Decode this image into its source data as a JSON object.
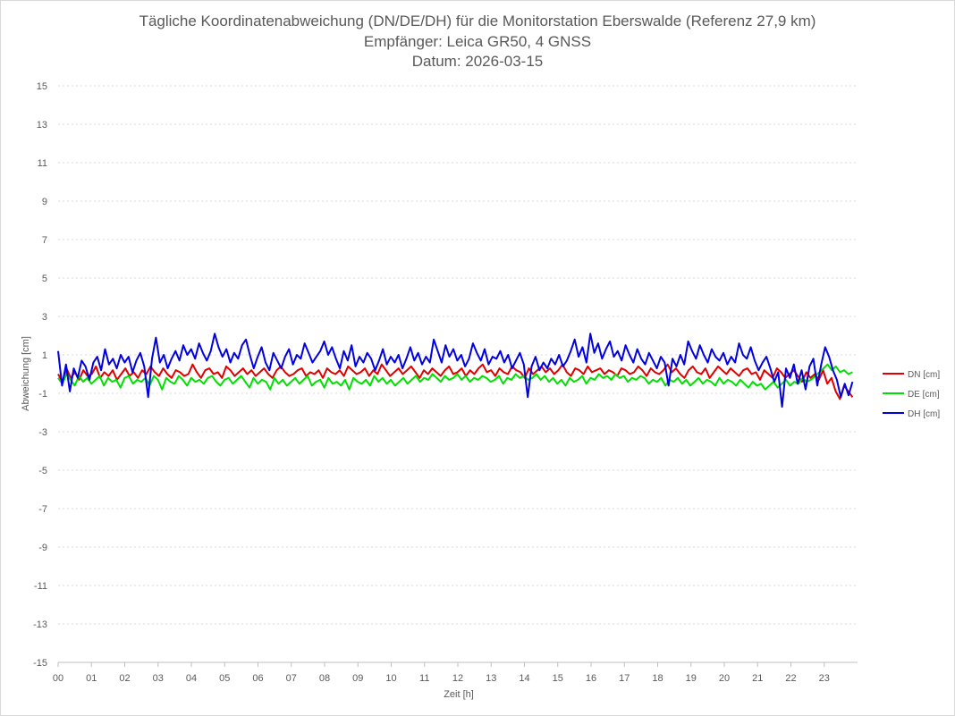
{
  "chart_data": {
    "type": "line",
    "title_lines": [
      "Tägliche Koordinatenabweichung (DN/DE/DH) für die Monitorstation Eberswalde (Referenz 27,9 km)",
      "Empfänger: Leica GR50, 4 GNSS",
      "Datum: 2026-03-15"
    ],
    "xlabel": "Zeit [h]",
    "ylabel": "Abweichung [cm]",
    "xlim": [
      0,
      24
    ],
    "ylim": [
      -15,
      15
    ],
    "x_ticks": [
      "00",
      "01",
      "02",
      "03",
      "04",
      "05",
      "06",
      "07",
      "08",
      "09",
      "10",
      "11",
      "12",
      "13",
      "14",
      "15",
      "16",
      "17",
      "18",
      "19",
      "20",
      "21",
      "22",
      "23"
    ],
    "y_ticks": [
      "15",
      "13",
      "11",
      "9",
      "7",
      "5",
      "3",
      "1",
      "-1",
      "-3",
      "-5",
      "-7",
      "-9",
      "-11",
      "-13",
      "-15"
    ],
    "grid": true,
    "legend_position": "right",
    "series": [
      {
        "name": "DN [cm]",
        "color": "#e00000",
        "hourly_mean": [
          -0.1,
          0.0,
          0.1,
          0.0,
          0.2,
          0.2,
          0.0,
          0.1,
          0.2,
          0.1,
          0.2,
          0.0,
          0.2,
          0.2,
          0.1,
          0.3,
          0.2,
          0.0,
          0.2,
          0.2,
          0.1,
          0.0,
          -0.2,
          0.1
        ],
        "values": [
          0.0,
          -0.4,
          0.3,
          -0.2,
          0.1,
          -0.3,
          0.2,
          -0.1,
          0.0,
          0.4,
          -0.2,
          0.1,
          -0.1,
          0.2,
          -0.3,
          0.0,
          0.3,
          -0.1,
          0.1,
          -0.2,
          0.2,
          0.0,
          0.4,
          0.1,
          -0.1,
          0.3,
          0.0,
          -0.2,
          0.2,
          0.1,
          -0.1,
          0.0,
          0.5,
          0.1,
          -0.2,
          0.2,
          0.3,
          0.0,
          0.1,
          -0.2,
          0.4,
          0.2,
          -0.1,
          0.1,
          0.3,
          0.0,
          0.2,
          -0.1,
          0.1,
          0.3,
          0.0,
          -0.2,
          0.2,
          0.4,
          0.1,
          -0.1,
          0.0,
          0.2,
          0.3,
          -0.1,
          0.1,
          0.0,
          0.2,
          -0.2,
          0.3,
          0.1,
          0.0,
          0.2,
          -0.1,
          0.4,
          0.2,
          0.0,
          0.1,
          0.3,
          -0.1,
          0.2,
          0.0,
          0.5,
          0.2,
          -0.1,
          0.1,
          0.3,
          0.0,
          0.2,
          0.4,
          0.1,
          -0.2,
          0.2,
          0.0,
          0.3,
          0.1,
          -0.1,
          0.2,
          0.4,
          0.0,
          0.1,
          0.3,
          -0.1,
          0.2,
          0.0,
          0.3,
          0.5,
          0.1,
          0.2,
          -0.1,
          0.3,
          0.1,
          0.0,
          0.4,
          0.2,
          0.1,
          -0.2,
          0.3,
          0.0,
          0.2,
          0.4,
          0.1,
          0.3,
          0.0,
          0.2,
          0.5,
          0.1,
          -0.1,
          0.3,
          0.2,
          0.0,
          0.4,
          0.1,
          0.2,
          0.3,
          0.0,
          0.2,
          0.1,
          -0.1,
          0.3,
          0.2,
          0.0,
          0.1,
          0.4,
          0.2,
          -0.1,
          0.3,
          0.1,
          0.0,
          0.2,
          0.5,
          0.1,
          0.3,
          0.0,
          -0.2,
          0.2,
          0.4,
          0.1,
          0.0,
          0.3,
          -0.2,
          0.1,
          0.4,
          0.2,
          0.0,
          0.3,
          0.1,
          -0.1,
          0.2,
          0.3,
          0.0,
          0.1,
          -0.3,
          0.2,
          0.0,
          -0.2,
          0.3,
          0.1,
          -0.2,
          0.0,
          0.2,
          -0.1,
          -0.4,
          0.1,
          -0.2,
          0.0,
          -0.3,
          0.2,
          -0.5,
          -0.2,
          -0.9,
          -1.3,
          -0.6,
          -0.9,
          -1.2
        ]
      },
      {
        "name": "DE [cm]",
        "color": "#00e000",
        "hourly_mean": [
          -0.2,
          -0.3,
          -0.3,
          -0.2,
          -0.4,
          -0.3,
          -0.3,
          -0.5,
          -0.3,
          -0.4,
          -0.5,
          -0.2,
          -0.2,
          -0.3,
          -0.1,
          -0.4,
          -0.1,
          -0.3,
          -0.4,
          -0.3,
          -0.4,
          -0.6,
          -0.4,
          0.1
        ],
        "values": [
          -0.2,
          -0.5,
          0.0,
          -0.3,
          -0.6,
          -0.1,
          -0.4,
          -0.2,
          -0.5,
          -0.3,
          -0.1,
          -0.6,
          -0.2,
          -0.4,
          -0.3,
          -0.7,
          -0.2,
          -0.1,
          -0.5,
          -0.3,
          -0.4,
          -0.2,
          -0.6,
          -0.1,
          -0.3,
          -0.8,
          -0.2,
          -0.4,
          -0.5,
          -0.1,
          -0.3,
          -0.6,
          -0.2,
          -0.4,
          -0.3,
          -0.5,
          -0.2,
          -0.1,
          -0.4,
          -0.6,
          -0.3,
          -0.2,
          -0.5,
          -0.3,
          -0.1,
          -0.4,
          -0.7,
          -0.2,
          -0.5,
          -0.3,
          -0.4,
          -0.8,
          -0.2,
          -0.5,
          -0.3,
          -0.6,
          -0.4,
          -0.2,
          -0.5,
          -0.3,
          -0.1,
          -0.6,
          -0.4,
          -0.3,
          -0.7,
          -0.2,
          -0.5,
          -0.4,
          -0.6,
          -0.3,
          -0.8,
          -0.2,
          -0.4,
          -0.5,
          -0.3,
          -0.6,
          -0.1,
          -0.4,
          -0.2,
          -0.5,
          -0.3,
          -0.6,
          -0.4,
          -0.2,
          -0.5,
          -0.3,
          -0.1,
          -0.4,
          -0.2,
          -0.3,
          0.0,
          -0.2,
          -0.4,
          -0.1,
          -0.3,
          -0.2,
          0.0,
          -0.3,
          -0.1,
          -0.4,
          -0.2,
          -0.3,
          -0.1,
          -0.2,
          -0.4,
          -0.3,
          -0.1,
          -0.5,
          -0.2,
          -0.3,
          0.0,
          -0.2,
          -0.1,
          -0.3,
          -0.2,
          0.0,
          -0.3,
          -0.1,
          -0.4,
          -0.2,
          -0.5,
          -0.3,
          -0.6,
          -0.2,
          -0.4,
          -0.3,
          -0.1,
          -0.5,
          -0.2,
          -0.3,
          0.0,
          -0.2,
          -0.1,
          -0.3,
          0.0,
          -0.2,
          -0.1,
          -0.4,
          -0.2,
          -0.3,
          -0.1,
          -0.2,
          -0.5,
          -0.3,
          -0.4,
          -0.2,
          -0.6,
          -0.3,
          -0.4,
          -0.2,
          -0.5,
          -0.3,
          -0.6,
          -0.4,
          -0.2,
          -0.5,
          -0.3,
          -0.4,
          -0.6,
          -0.2,
          -0.5,
          -0.3,
          -0.4,
          -0.6,
          -0.3,
          -0.5,
          -0.7,
          -0.4,
          -0.6,
          -0.5,
          -0.8,
          -0.6,
          -0.4,
          -0.7,
          -0.5,
          -0.3,
          -0.6,
          -0.4,
          -0.5,
          -0.2,
          -0.4,
          -0.3,
          -0.1,
          0.1,
          0.3,
          0.5,
          0.2,
          0.4,
          0.1,
          0.2,
          0.0,
          0.1
        ]
      },
      {
        "name": "DH [cm]",
        "color": "#0000e0",
        "hourly_mean": [
          0.2,
          0.6,
          0.5,
          0.6,
          1.1,
          1.2,
          0.8,
          0.6,
          0.9,
          0.7,
          0.6,
          0.9,
          0.7,
          0.8,
          0.4,
          1.1,
          0.9,
          0.6,
          0.5,
          0.9,
          0.8,
          0.5,
          0.2,
          0.3
        ],
        "values": [
          1.2,
          -0.6,
          0.5,
          -0.9,
          0.3,
          -0.2,
          0.7,
          0.4,
          -0.3,
          0.6,
          0.9,
          0.2,
          1.3,
          0.5,
          0.8,
          0.3,
          1.0,
          0.6,
          0.9,
          0.1,
          0.7,
          1.1,
          0.4,
          -1.2,
          0.8,
          1.9,
          0.6,
          1.0,
          0.3,
          0.8,
          1.2,
          0.7,
          1.5,
          1.0,
          1.3,
          0.8,
          1.6,
          1.1,
          0.7,
          1.2,
          2.1,
          1.4,
          0.9,
          1.3,
          0.6,
          1.1,
          0.8,
          1.5,
          1.8,
          1.0,
          0.3,
          0.9,
          1.4,
          0.6,
          0.2,
          1.1,
          0.7,
          0.3,
          0.9,
          1.3,
          0.5,
          1.0,
          0.8,
          1.6,
          1.1,
          0.6,
          0.9,
          1.2,
          1.7,
          1.0,
          1.4,
          0.8,
          0.3,
          1.2,
          0.7,
          1.5,
          0.4,
          0.9,
          0.6,
          1.1,
          0.8,
          0.2,
          0.7,
          1.3,
          0.5,
          0.9,
          0.6,
          1.0,
          0.3,
          0.8,
          1.4,
          0.7,
          1.1,
          0.5,
          0.9,
          0.6,
          1.8,
          1.2,
          0.6,
          1.5,
          0.9,
          1.3,
          0.7,
          1.0,
          0.4,
          0.8,
          1.6,
          1.1,
          0.7,
          1.3,
          0.5,
          0.9,
          0.8,
          1.2,
          0.6,
          1.0,
          0.3,
          0.7,
          1.1,
          0.5,
          -1.2,
          0.4,
          0.9,
          0.2,
          0.6,
          0.3,
          0.8,
          0.5,
          1.0,
          0.4,
          0.7,
          1.2,
          1.8,
          0.9,
          1.4,
          0.6,
          2.1,
          1.1,
          1.6,
          0.8,
          1.3,
          1.7,
          0.9,
          1.2,
          0.7,
          1.5,
          1.0,
          0.6,
          1.3,
          0.8,
          0.5,
          1.1,
          0.7,
          0.3,
          0.9,
          0.6,
          -0.6,
          0.8,
          0.4,
          1.0,
          0.5,
          1.7,
          1.2,
          0.8,
          1.5,
          1.0,
          0.6,
          1.3,
          0.9,
          0.7,
          1.1,
          0.5,
          0.9,
          0.6,
          1.6,
          1.0,
          0.8,
          1.4,
          0.7,
          0.2,
          0.6,
          0.9,
          0.3,
          -0.4,
          0.1,
          -1.7,
          0.3,
          -0.2,
          0.5,
          -0.5,
          0.2,
          -0.8,
          0.4,
          0.8,
          -0.6,
          0.5,
          1.4,
          0.9,
          0.2,
          -0.3,
          -1.2,
          -0.5,
          -1.1,
          -0.4
        ]
      }
    ]
  }
}
